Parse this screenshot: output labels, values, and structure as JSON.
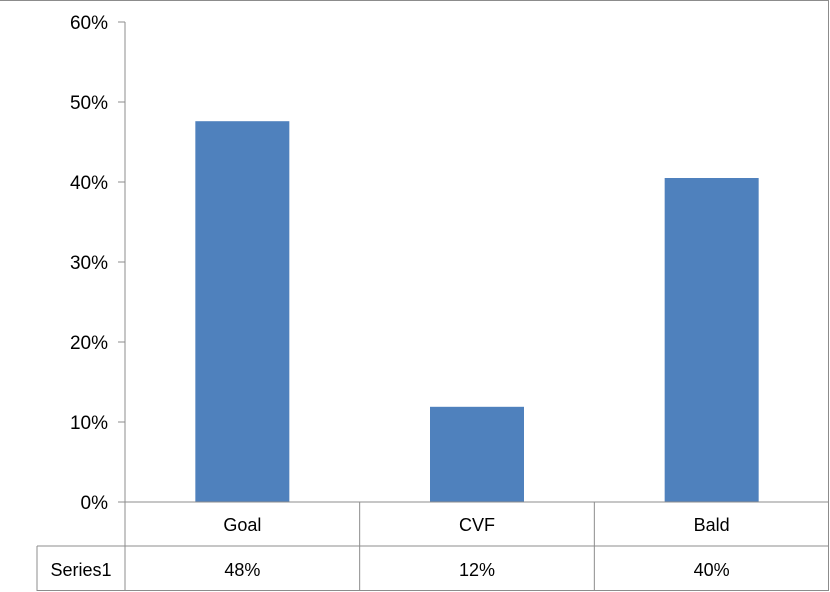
{
  "chart_data": {
    "type": "bar",
    "categories": [
      "Goal",
      "CVF",
      "Bald"
    ],
    "series": [
      {
        "name": "Series1",
        "values": [
          0.476,
          0.119,
          0.405
        ],
        "value_labels": [
          "48%",
          "12%",
          "40%"
        ]
      }
    ],
    "ylim": [
      0,
      0.6
    ],
    "y_ticks": [
      "0%",
      "10%",
      "20%",
      "30%",
      "40%",
      "50%",
      "60%"
    ],
    "grid": false,
    "legend": "none",
    "data_table": true,
    "colors": {
      "bar": "#4F81BD",
      "axis": "#8C8C8C"
    }
  }
}
